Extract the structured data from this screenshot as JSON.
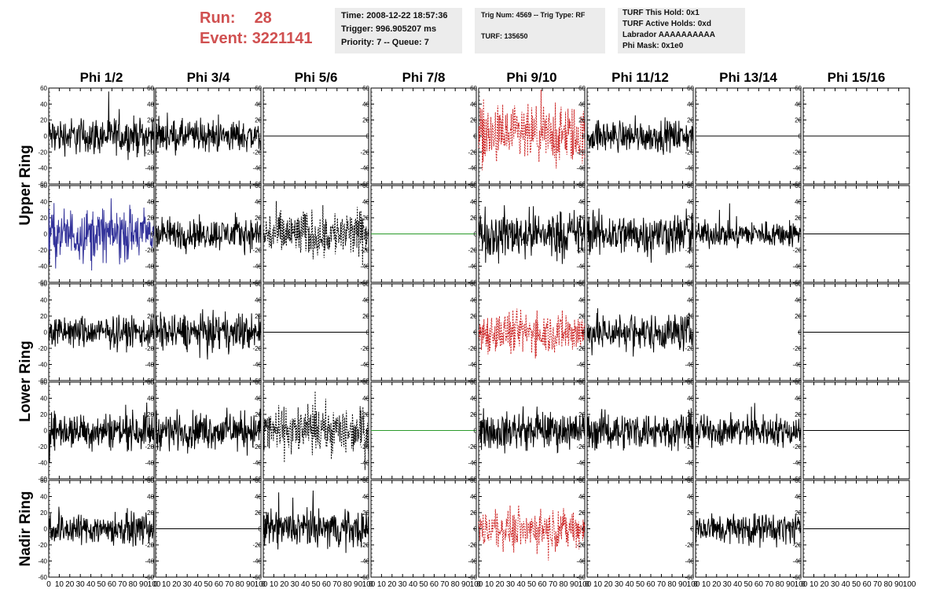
{
  "header": {
    "run_label": "Run:",
    "run_value": "28",
    "event_label": "Event:",
    "event_value": "3221141",
    "box1": [
      "Time: 2008-12-22 18:57:36",
      "Trigger: 996.905207 ms",
      "Priority: 7 -- Queue: 7"
    ],
    "box2": [
      "Trig Num: 4569 -- Trig Type: RF",
      "TURF: 135650"
    ],
    "box3": [
      "TURF This Hold: 0x1",
      "TURF Active Holds: 0xd",
      "Labrador AAAAAAAAAA",
      "Phi Mask: 0x1e0"
    ]
  },
  "chart_data": {
    "type": "line",
    "columns": [
      "Phi 1/2",
      "Phi 3/4",
      "Phi 5/6",
      "Phi 7/8",
      "Phi 9/10",
      "Phi 11/12",
      "Phi 13/14",
      "Phi 15/16"
    ],
    "ring_labels": [
      "Upper Ring",
      "Lower Ring",
      "Nadir Ring"
    ],
    "ylim": [
      -60,
      60
    ],
    "y_ticks": [
      -60,
      -40,
      -20,
      0,
      20,
      40,
      60
    ],
    "y_tick_labels": [
      "-60",
      "-40",
      "-20",
      "0",
      "20",
      "40",
      "60"
    ],
    "xlim": [
      0,
      100
    ],
    "x_ticks": [
      0,
      10,
      20,
      30,
      40,
      50,
      60,
      70,
      80,
      90,
      100
    ],
    "x_tick_labels": [
      "0",
      "10",
      "20",
      "30",
      "40",
      "50",
      "60",
      "70",
      "80",
      "90",
      "100"
    ],
    "colors": {
      "black": "#000000",
      "red": "#cc2222",
      "blue": "#33339a",
      "green": "#2a9a2a"
    },
    "grid": false,
    "panels": [
      [
        "noise",
        14,
        "black",
        false
      ],
      [
        "noise",
        12,
        "black",
        false
      ],
      [
        "flat",
        0,
        "black",
        false
      ],
      [
        "none",
        0,
        "black",
        false
      ],
      [
        "noise",
        22,
        "red",
        true
      ],
      [
        "noise",
        12,
        "black",
        false
      ],
      [
        "noise",
        0,
        "black",
        false
      ],
      [
        "flat",
        0,
        "black",
        false
      ],
      [
        "noise",
        20,
        "blue",
        false
      ],
      [
        "noise",
        12,
        "black",
        false
      ],
      [
        "noise",
        18,
        "black",
        true
      ],
      [
        "flat",
        0,
        "green",
        false
      ],
      [
        "noise",
        18,
        "black",
        false
      ],
      [
        "noise",
        16,
        "black",
        false
      ],
      [
        "noise",
        10,
        "black",
        false
      ],
      [
        "flat",
        0,
        "black",
        false
      ],
      [
        "noise",
        12,
        "black",
        false
      ],
      [
        "noise",
        14,
        "black",
        false
      ],
      [
        "flat",
        0,
        "black",
        false
      ],
      [
        "none",
        0,
        "black",
        false
      ],
      [
        "noise",
        16,
        "red",
        true
      ],
      [
        "noise",
        14,
        "black",
        false
      ],
      [
        "none",
        0,
        "black",
        false
      ],
      [
        "flat",
        0,
        "black",
        false
      ],
      [
        "noise",
        14,
        "black",
        false
      ],
      [
        "noise",
        14,
        "black",
        false
      ],
      [
        "noise",
        18,
        "black",
        true
      ],
      [
        "flat",
        0,
        "green",
        false
      ],
      [
        "noise",
        14,
        "black",
        false
      ],
      [
        "noise",
        14,
        "black",
        false
      ],
      [
        "noise",
        12,
        "black",
        false
      ],
      [
        "flat",
        0,
        "black",
        false
      ],
      [
        "noise",
        12,
        "black",
        false
      ],
      [
        "flat",
        0,
        "black",
        false
      ],
      [
        "noise",
        14,
        "black",
        false
      ],
      [
        "none",
        0,
        "black",
        false
      ],
      [
        "noise",
        14,
        "red",
        true
      ],
      [
        "none",
        0,
        "black",
        false
      ],
      [
        "noise",
        12,
        "black",
        false
      ],
      [
        "flat",
        0,
        "black",
        false
      ]
    ]
  }
}
